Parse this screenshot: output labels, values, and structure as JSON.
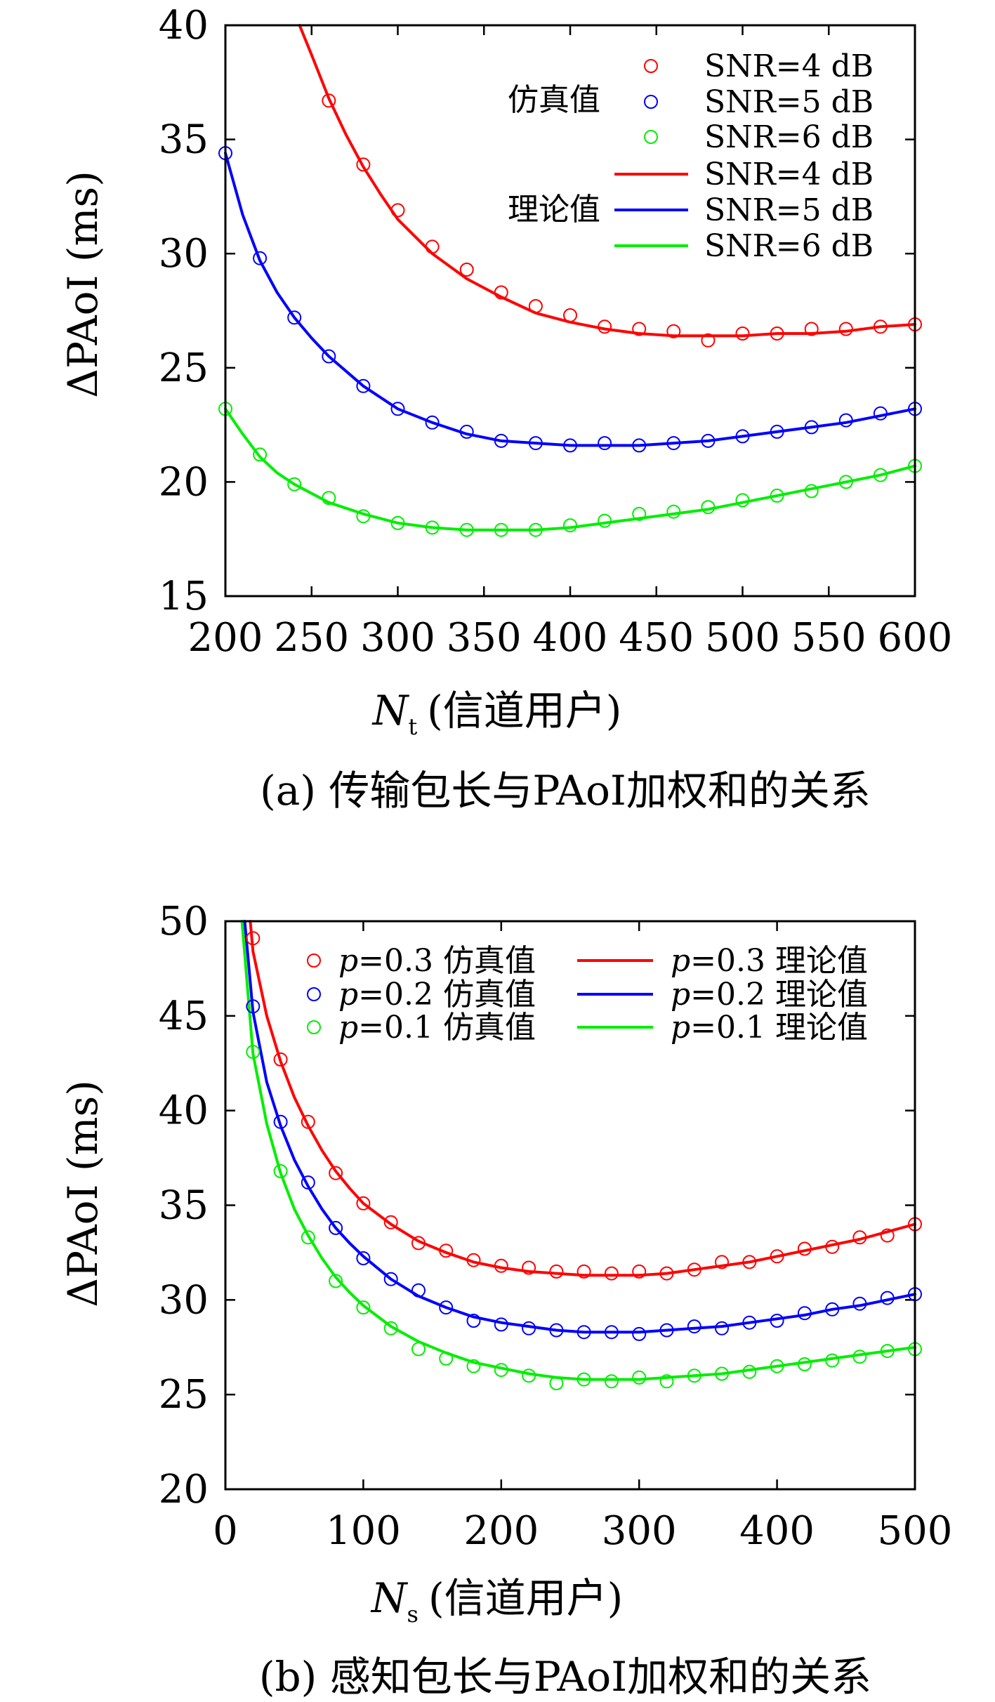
{
  "chart_data": [
    {
      "type": "line",
      "xlabel": "N_t (信道用户)",
      "xlabel_symbol": "N",
      "xlabel_sub": "t",
      "xlabel_rest": "(信道用户)",
      "ylabel": "ΔPAoI (ms)",
      "xlim": [
        200,
        600
      ],
      "ylim": [
        15,
        40
      ],
      "xticks": [
        200,
        250,
        300,
        350,
        400,
        450,
        500,
        550,
        600
      ],
      "yticks": [
        15,
        20,
        25,
        30,
        35,
        40
      ],
      "caption": "(a) 传输包长与PAoI加权和的关系",
      "legend_group_labels": [
        "仿真值",
        "理论值"
      ],
      "series": [
        {
          "name": "SNR=4 dB",
          "kind": "simulation",
          "color": "#ff0000",
          "x": [
            260,
            280,
            300,
            320,
            340,
            360,
            380,
            400,
            420,
            440,
            460,
            480,
            500,
            520,
            540,
            560,
            580,
            600
          ],
          "y": [
            36.7,
            33.9,
            31.9,
            30.3,
            29.3,
            28.3,
            27.7,
            27.3,
            26.8,
            26.7,
            26.6,
            26.2,
            26.5,
            26.5,
            26.7,
            26.7,
            26.8,
            26.9
          ]
        },
        {
          "name": "SNR=5 dB",
          "kind": "simulation",
          "color": "#0000ff",
          "x": [
            200,
            220,
            240,
            260,
            280,
            300,
            320,
            340,
            360,
            380,
            400,
            420,
            440,
            460,
            480,
            500,
            520,
            540,
            560,
            580,
            600
          ],
          "y": [
            34.4,
            29.8,
            27.2,
            25.5,
            24.2,
            23.2,
            22.6,
            22.2,
            21.8,
            21.7,
            21.6,
            21.7,
            21.6,
            21.7,
            21.8,
            22.0,
            22.2,
            22.4,
            22.7,
            23.0,
            23.2
          ]
        },
        {
          "name": "SNR=6 dB",
          "kind": "simulation",
          "color": "#00ee00",
          "x": [
            200,
            220,
            240,
            260,
            280,
            300,
            320,
            340,
            360,
            380,
            400,
            420,
            440,
            460,
            480,
            500,
            520,
            540,
            560,
            580,
            600
          ],
          "y": [
            23.2,
            21.2,
            19.9,
            19.3,
            18.5,
            18.2,
            18.0,
            17.9,
            17.9,
            17.9,
            18.1,
            18.3,
            18.6,
            18.7,
            18.9,
            19.2,
            19.4,
            19.6,
            20.0,
            20.3,
            20.7
          ]
        },
        {
          "name": "SNR=4 dB",
          "kind": "theory",
          "color": "#ff0000",
          "x": [
            243,
            250,
            260,
            270,
            280,
            290,
            300,
            320,
            340,
            360,
            380,
            400,
            420,
            440,
            460,
            480,
            500,
            520,
            540,
            560,
            580,
            600
          ],
          "y": [
            40.0,
            38.7,
            36.8,
            35.2,
            33.8,
            32.6,
            31.5,
            30.0,
            28.9,
            28.1,
            27.4,
            27.0,
            26.7,
            26.5,
            26.4,
            26.4,
            26.4,
            26.5,
            26.5,
            26.6,
            26.8,
            26.9
          ]
        },
        {
          "name": "SNR=5 dB",
          "kind": "theory",
          "color": "#0000ff",
          "x": [
            200,
            210,
            220,
            230,
            240,
            250,
            260,
            280,
            300,
            320,
            340,
            360,
            380,
            400,
            420,
            440,
            460,
            480,
            500,
            520,
            540,
            560,
            580,
            600
          ],
          "y": [
            34.4,
            31.7,
            29.7,
            28.3,
            27.2,
            26.3,
            25.5,
            24.2,
            23.2,
            22.6,
            22.1,
            21.8,
            21.7,
            21.6,
            21.6,
            21.6,
            21.7,
            21.8,
            22.0,
            22.2,
            22.4,
            22.6,
            22.9,
            23.2
          ]
        },
        {
          "name": "SNR=6 dB",
          "kind": "theory",
          "color": "#00ee00",
          "x": [
            200,
            210,
            220,
            230,
            240,
            250,
            260,
            280,
            300,
            320,
            340,
            360,
            380,
            400,
            420,
            440,
            460,
            480,
            500,
            520,
            540,
            560,
            580,
            600
          ],
          "y": [
            23.2,
            22.1,
            21.1,
            20.4,
            19.9,
            19.5,
            19.1,
            18.6,
            18.2,
            18.0,
            17.9,
            17.9,
            17.9,
            18.0,
            18.2,
            18.4,
            18.6,
            18.8,
            19.1,
            19.4,
            19.7,
            20.0,
            20.3,
            20.7
          ]
        }
      ]
    },
    {
      "type": "line",
      "xlabel": "N_s (信道用户)",
      "xlabel_symbol": "N",
      "xlabel_sub": "s",
      "xlabel_rest": "(信道用户)",
      "ylabel": "ΔPAoI (ms)",
      "xlim": [
        0,
        500
      ],
      "ylim": [
        20,
        50
      ],
      "xticks": [
        0,
        100,
        200,
        300,
        400,
        500
      ],
      "yticks": [
        20,
        25,
        30,
        35,
        40,
        45,
        50
      ],
      "caption": "(b) 感知包长与PAoI加权和的关系",
      "series": [
        {
          "name": "p=0.3 仿真值",
          "kind": "simulation",
          "color": "#ff0000",
          "p_value": "=0.3",
          "tag": "仿真值",
          "x": [
            20,
            40,
            60,
            80,
            100,
            120,
            140,
            160,
            180,
            200,
            220,
            240,
            260,
            280,
            300,
            320,
            340,
            360,
            380,
            400,
            420,
            440,
            460,
            480,
            500
          ],
          "y": [
            49.1,
            42.7,
            39.4,
            36.7,
            35.1,
            34.1,
            33.0,
            32.6,
            32.1,
            31.8,
            31.7,
            31.5,
            31.5,
            31.4,
            31.5,
            31.4,
            31.6,
            32.0,
            32.0,
            32.3,
            32.7,
            32.8,
            33.3,
            33.4,
            34.0
          ]
        },
        {
          "name": "p=0.2 仿真值",
          "kind": "simulation",
          "color": "#0000ff",
          "p_value": "=0.2",
          "tag": "仿真值",
          "x": [
            20,
            40,
            60,
            80,
            100,
            120,
            140,
            160,
            180,
            200,
            220,
            240,
            260,
            280,
            300,
            320,
            340,
            360,
            380,
            400,
            420,
            440,
            460,
            480,
            500
          ],
          "y": [
            45.5,
            39.4,
            36.2,
            33.8,
            32.2,
            31.1,
            30.5,
            29.6,
            28.9,
            28.7,
            28.5,
            28.4,
            28.3,
            28.3,
            28.2,
            28.4,
            28.6,
            28.5,
            28.8,
            28.9,
            29.3,
            29.5,
            29.8,
            30.1,
            30.3
          ]
        },
        {
          "name": "p=0.1 仿真值",
          "kind": "simulation",
          "color": "#00ee00",
          "p_value": "=0.1",
          "tag": "仿真值",
          "x": [
            20,
            40,
            60,
            80,
            100,
            120,
            140,
            160,
            180,
            200,
            220,
            240,
            260,
            280,
            300,
            320,
            340,
            360,
            380,
            400,
            420,
            440,
            460,
            480,
            500
          ],
          "y": [
            43.1,
            36.8,
            33.3,
            31.0,
            29.6,
            28.5,
            27.4,
            26.9,
            26.5,
            26.3,
            26.0,
            25.6,
            25.8,
            25.7,
            25.9,
            25.7,
            26.0,
            26.1,
            26.2,
            26.5,
            26.6,
            26.8,
            27.0,
            27.3,
            27.4
          ]
        },
        {
          "name": "p=0.3 理论值",
          "kind": "theory",
          "color": "#ff0000",
          "p_value": "=0.3",
          "tag": "理论值",
          "x": [
            18,
            20,
            30,
            40,
            50,
            60,
            70,
            80,
            90,
            100,
            120,
            140,
            160,
            180,
            200,
            220,
            240,
            260,
            280,
            300,
            320,
            340,
            360,
            380,
            400,
            420,
            440,
            460,
            480,
            500
          ],
          "y": [
            50.0,
            48.4,
            45.0,
            42.6,
            40.7,
            39.2,
            37.9,
            36.8,
            35.9,
            35.1,
            34.0,
            33.1,
            32.5,
            32.0,
            31.7,
            31.5,
            31.4,
            31.3,
            31.3,
            31.3,
            31.4,
            31.6,
            31.8,
            32.0,
            32.3,
            32.6,
            32.9,
            33.2,
            33.6,
            34.0
          ]
        },
        {
          "name": "p=0.2 理论值",
          "kind": "theory",
          "color": "#0000ff",
          "p_value": "=0.2",
          "tag": "理论值",
          "x": [
            14,
            20,
            30,
            40,
            50,
            60,
            70,
            80,
            90,
            100,
            120,
            140,
            160,
            180,
            200,
            220,
            240,
            260,
            280,
            300,
            320,
            340,
            360,
            380,
            400,
            420,
            440,
            460,
            480,
            500
          ],
          "y": [
            50.0,
            45.2,
            41.5,
            39.2,
            37.4,
            36.0,
            34.8,
            33.8,
            33.0,
            32.3,
            31.1,
            30.2,
            29.6,
            29.1,
            28.8,
            28.6,
            28.4,
            28.3,
            28.3,
            28.3,
            28.4,
            28.5,
            28.6,
            28.8,
            29.0,
            29.2,
            29.5,
            29.7,
            30.0,
            30.3
          ]
        },
        {
          "name": "p=0.1 理论值",
          "kind": "theory",
          "color": "#00ee00",
          "p_value": "=0.1",
          "tag": "理论值",
          "x": [
            12,
            20,
            30,
            40,
            50,
            60,
            70,
            80,
            90,
            100,
            120,
            140,
            160,
            180,
            200,
            220,
            240,
            260,
            280,
            300,
            320,
            340,
            360,
            380,
            400,
            420,
            440,
            460,
            480,
            500
          ],
          "y": [
            50.0,
            43.0,
            39.3,
            36.7,
            34.8,
            33.4,
            32.2,
            31.2,
            30.4,
            29.7,
            28.6,
            27.8,
            27.2,
            26.7,
            26.4,
            26.1,
            25.9,
            25.8,
            25.8,
            25.8,
            25.9,
            26.0,
            26.1,
            26.3,
            26.5,
            26.7,
            26.9,
            27.1,
            27.3,
            27.5
          ]
        }
      ]
    }
  ]
}
